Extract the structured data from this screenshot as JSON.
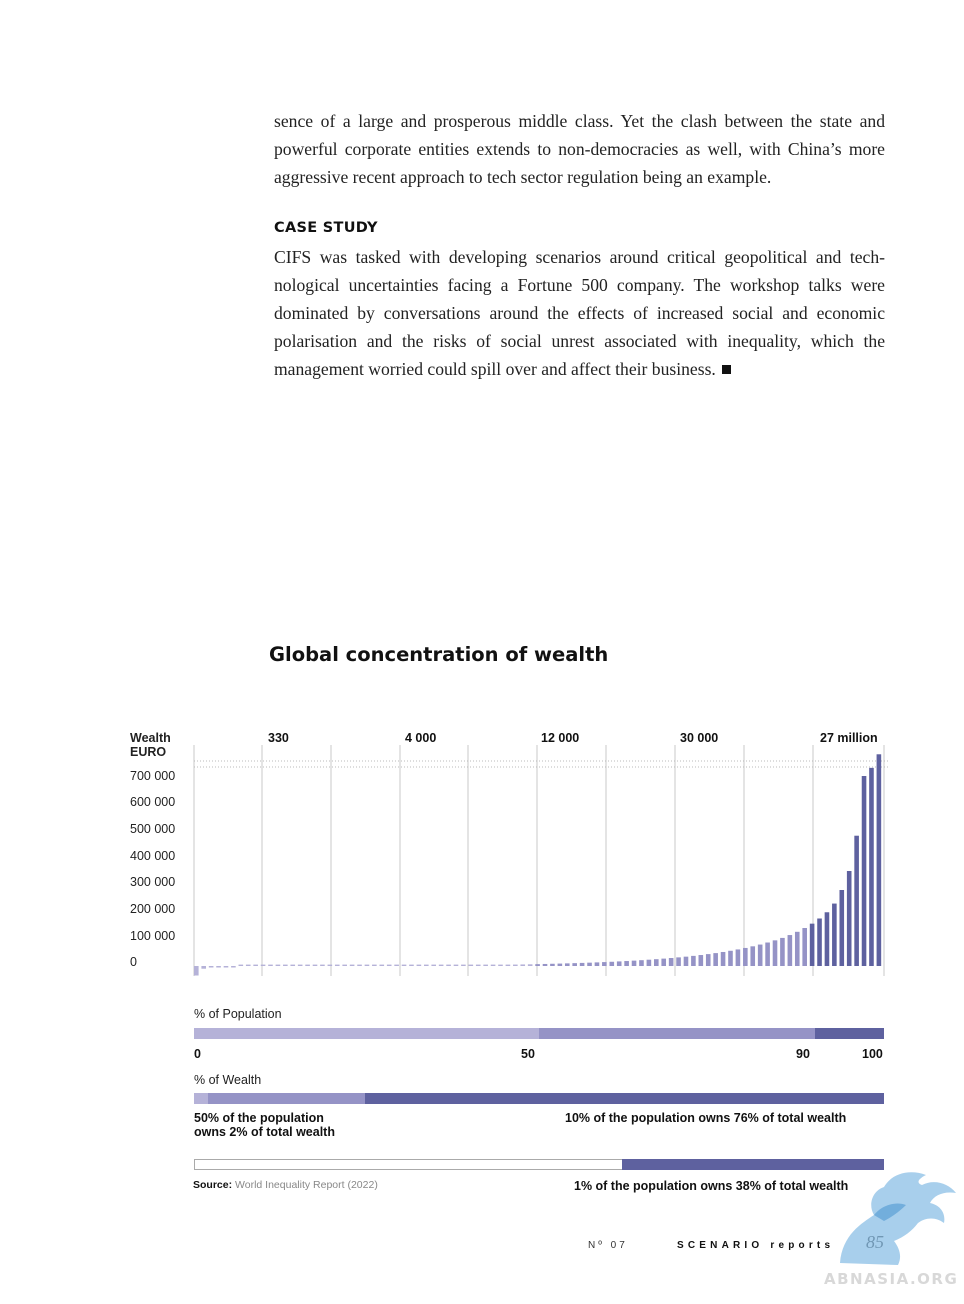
{
  "text": {
    "para1": "sence of a large and prosperous middle class. Yet the clash between the state and powerful corporate entities extends to non-democracies as well, with China’s more aggressive recent approach to tech sector regulation being an example.",
    "case_heading": "CASE STUDY",
    "para2": "CIFS was tasked with developing scenarios around critical geopolitical and tech-nological uncertainties facing a Fortune 500 company. The workshop talks were dominated by conversations around the effects of increased social and economic polarisation and the risks of social unrest associated with inequality, which the management worried could spill over and affect their business."
  },
  "chart_data": {
    "type": "bar",
    "title": "Global concentration of wealth",
    "ylabel_line1": "Wealth",
    "ylabel_line2": "EURO",
    "yticks": [
      "700 000",
      "600 000",
      "500 000",
      "400 000",
      "300 000",
      "200 000",
      "100 000",
      "0"
    ],
    "ylim": [
      0,
      800000
    ],
    "x_percentile_labels": [
      "330",
      "4 000",
      "12 000",
      "30 000",
      "27 million"
    ],
    "values": [
      -3500,
      -1000,
      -500,
      -300,
      -200,
      -100,
      0,
      0,
      0,
      0,
      50,
      80,
      110,
      140,
      170,
      200,
      230,
      260,
      290,
      330,
      380,
      440,
      500,
      570,
      650,
      740,
      840,
      950,
      1070,
      1200,
      1350,
      1510,
      1700,
      1900,
      2100,
      2350,
      2600,
      2900,
      3200,
      3550,
      4000,
      4400,
      4850,
      5300,
      5800,
      6300,
      6900,
      7500,
      8200,
      8900,
      9700,
      10500,
      11400,
      12300,
      13300,
      14400,
      15600,
      16900,
      18300,
      19800,
      21400,
      23200,
      25100,
      27200,
      29400,
      31800,
      34400,
      37300,
      40400,
      43800,
      47500,
      51600,
      56100,
      61000,
      66500,
      72500,
      79000,
      86500,
      94500,
      103500,
      114000,
      126000,
      140000,
      156000,
      175000,
      198000,
      230000,
      280000,
      350000,
      480000,
      700000,
      730000,
      800000
    ],
    "population_label": "% of Population",
    "population_ticks": [
      "0",
      "50",
      "90",
      "100"
    ],
    "population_segments": [
      50,
      40,
      10
    ],
    "wealth_label": "% of Wealth",
    "wealth_segments": [
      2,
      23,
      76
    ],
    "bottom50_note_line1": "50% of the population",
    "bottom50_note_line2": "owns 2% of total wealth",
    "top10_note": "10% of the population owns 76% of total wealth",
    "top1_share": 38,
    "top1_note": "1% of the population owns 38% of total wealth",
    "source_label": "Source:",
    "source_text": "World Inequality Report (2022)",
    "colors": {
      "light": "#b5b2d8",
      "mid": "#9593c6",
      "dark": "#5e619f",
      "grid": "#c8c8c8"
    }
  },
  "footer": {
    "issue": "Nº 07",
    "publication": "SCENARIO reports",
    "page": "85"
  },
  "watermark": {
    "text": "ABNASIA.ORG"
  }
}
